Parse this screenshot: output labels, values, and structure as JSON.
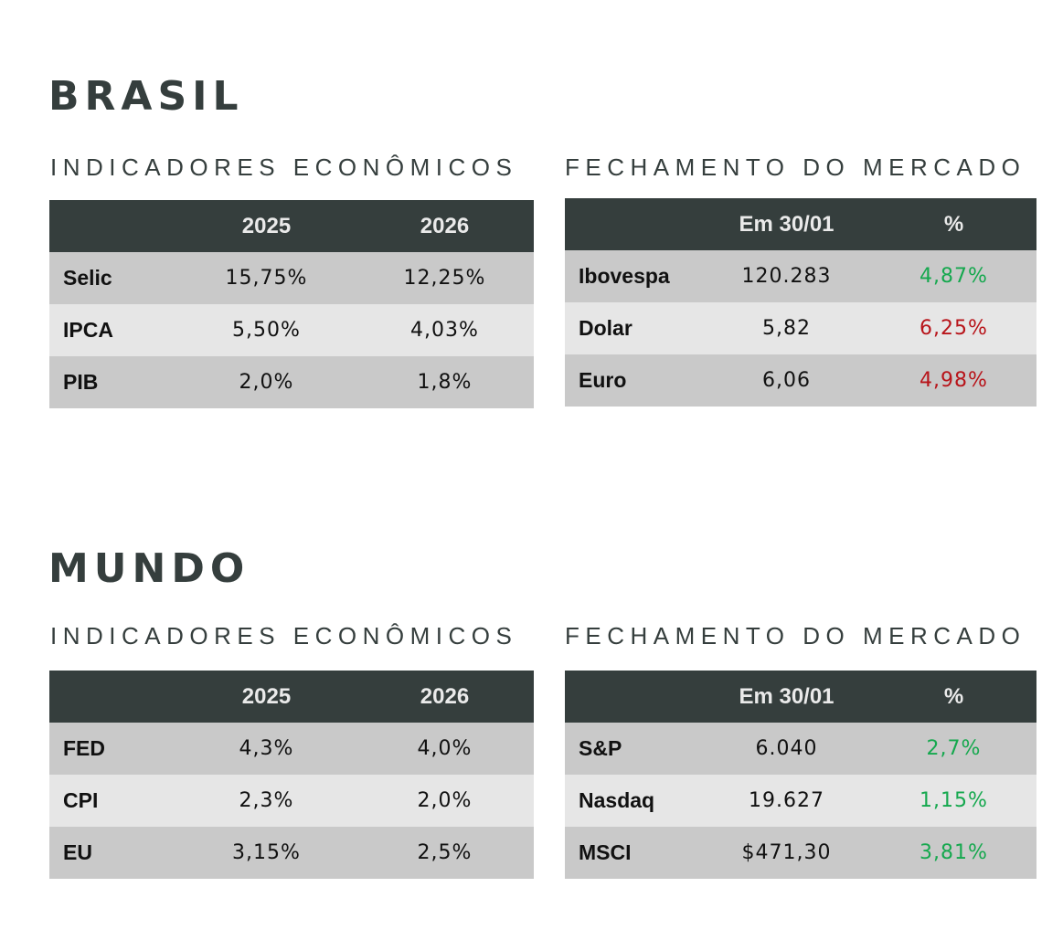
{
  "colors": {
    "title": "#353e3d",
    "header_bg": "#353e3d",
    "header_text": "#eaeaea",
    "row_dark": "#c9c9c9",
    "row_light": "#e6e6e6",
    "positive": "#15a84e",
    "negative": "#b8141a"
  },
  "brasil": {
    "title": "BRASIL",
    "indicadores": {
      "title": "INDICADORES ECONÔMICOS",
      "headers": [
        "",
        "2025",
        "2026"
      ],
      "rows": [
        {
          "label": "Selic",
          "v2025": "15,75%",
          "v2026": "12,25%"
        },
        {
          "label": "IPCA",
          "v2025": "5,50%",
          "v2026": "4,03%"
        },
        {
          "label": "PIB",
          "v2025": "2,0%",
          "v2026": "1,8%"
        }
      ]
    },
    "mercado": {
      "title": "FECHAMENTO DO MERCADO",
      "headers": [
        "",
        "Em 30/01",
        "%"
      ],
      "rows": [
        {
          "label": "Ibovespa",
          "value": "120.283",
          "pct": "4,87%",
          "trend": "up"
        },
        {
          "label": "Dolar",
          "value": "5,82",
          "pct": "6,25%",
          "trend": "down"
        },
        {
          "label": "Euro",
          "value": "6,06",
          "pct": "4,98%",
          "trend": "down"
        }
      ]
    }
  },
  "mundo": {
    "title": "MUNDO",
    "indicadores": {
      "title": "INDICADORES ECONÔMICOS",
      "headers": [
        "",
        "2025",
        "2026"
      ],
      "rows": [
        {
          "label": "FED",
          "v2025": "4,3%",
          "v2026": "4,0%"
        },
        {
          "label": "CPI",
          "v2025": "2,3%",
          "v2026": "2,0%"
        },
        {
          "label": "EU",
          "v2025": "3,15%",
          "v2026": "2,5%"
        }
      ]
    },
    "mercado": {
      "title": "FECHAMENTO DO MERCADO",
      "headers": [
        "",
        "Em 30/01",
        "%"
      ],
      "rows": [
        {
          "label": "S&P",
          "value": "6.040",
          "pct": "2,7%",
          "trend": "up"
        },
        {
          "label": "Nasdaq",
          "value": "19.627",
          "pct": "1,15%",
          "trend": "up"
        },
        {
          "label": "MSCI",
          "value": "$471,30",
          "pct": "3,81%",
          "trend": "up"
        }
      ]
    }
  }
}
